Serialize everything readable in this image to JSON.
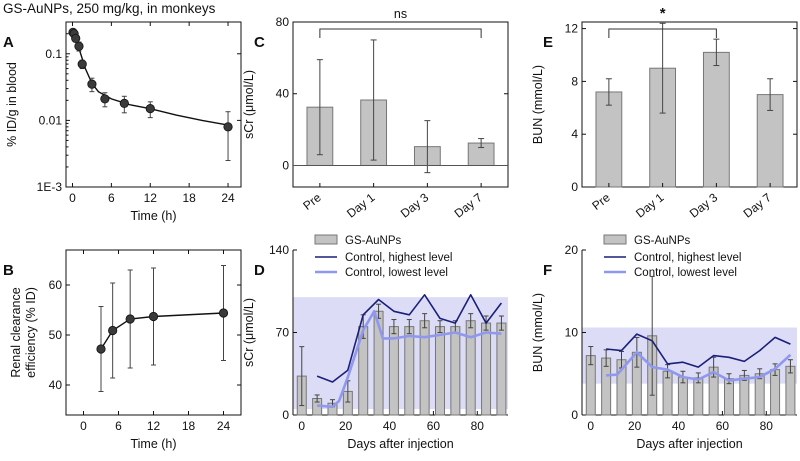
{
  "figure_title": "GS-AuNPs, 250 mg/kg, in monkeys",
  "colors": {
    "bar_fill": "#c3c3c3",
    "bar_stroke": "#777777",
    "control_high": "#1b1f7a",
    "control_low": "#8f98ee",
    "band": "#dcdcf6",
    "marker": "#3a3a3a"
  },
  "chart_data": [
    {
      "id": "A",
      "panel_label": "A",
      "type": "scatter",
      "xlabel": "Time (h)",
      "ylabel": "% ID/g in blood",
      "yscale": "log",
      "xlim": [
        -1,
        26
      ],
      "ylim": [
        0.001,
        0.3
      ],
      "xticks": [
        0,
        6,
        12,
        18,
        24
      ],
      "xtick_labels": [
        "0",
        "6",
        "12",
        "18",
        "24"
      ],
      "yticks": [
        0.001,
        0.01,
        0.1
      ],
      "ytick_labels": [
        "1E-3",
        "0.01",
        "0.1"
      ],
      "points": [
        {
          "x": 0.08,
          "y": 0.21,
          "err": 0.02
        },
        {
          "x": 0.25,
          "y": 0.2,
          "err": 0.02
        },
        {
          "x": 0.5,
          "y": 0.17,
          "err": 0.02
        },
        {
          "x": 1,
          "y": 0.13,
          "err": 0.02
        },
        {
          "x": 1.5,
          "y": 0.07,
          "err": 0.01
        },
        {
          "x": 3,
          "y": 0.035,
          "err": 0.008
        },
        {
          "x": 5,
          "y": 0.021,
          "err": 0.005
        },
        {
          "x": 8,
          "y": 0.018,
          "err": 0.005
        },
        {
          "x": 12,
          "y": 0.015,
          "err": 0.004
        },
        {
          "x": 24,
          "y": 0.008,
          "err": 0.0055
        }
      ],
      "fit": [
        [
          0.08,
          0.22
        ],
        [
          0.5,
          0.17
        ],
        [
          1,
          0.12
        ],
        [
          2,
          0.06
        ],
        [
          3,
          0.036
        ],
        [
          4,
          0.027
        ],
        [
          6,
          0.021
        ],
        [
          9,
          0.017
        ],
        [
          12,
          0.015
        ],
        [
          16,
          0.012
        ],
        [
          20,
          0.01
        ],
        [
          24,
          0.0085
        ]
      ]
    },
    {
      "id": "B",
      "panel_label": "B",
      "type": "line",
      "xlabel": "Time (h)",
      "ylabel_lines": [
        "Renal clearance",
        "efficiency (% ID)"
      ],
      "xlim": [
        -3,
        27
      ],
      "ylim": [
        34,
        67
      ],
      "xticks": [
        0,
        6,
        12,
        18,
        24
      ],
      "xtick_labels": [
        "0",
        "6",
        "12",
        "18",
        "24"
      ],
      "yticks": [
        40,
        50,
        60
      ],
      "ytick_labels": [
        "40",
        "50",
        "60"
      ],
      "points": [
        {
          "x": 3,
          "y": 47.2,
          "err": 8.5
        },
        {
          "x": 5,
          "y": 50.9,
          "err": 9.5
        },
        {
          "x": 8,
          "y": 53.2,
          "err": 9.8
        },
        {
          "x": 12,
          "y": 53.7,
          "err": 9.7
        },
        {
          "x": 24,
          "y": 54.4,
          "err": 9.5
        }
      ]
    },
    {
      "id": "C",
      "panel_label": "C",
      "type": "bar",
      "ylabel": "sCr (μmol/L)",
      "ylim": [
        -12,
        80
      ],
      "yticks": [
        0,
        40,
        80
      ],
      "ytick_labels": [
        "0",
        "40",
        "80"
      ],
      "categories": [
        "Pre",
        "Day 1",
        "Day 3",
        "Day 7"
      ],
      "values": [
        32.5,
        36.5,
        10.5,
        12.5
      ],
      "errors": [
        26.5,
        33.5,
        14.5,
        2.5
      ],
      "annotation": "ns",
      "annotation_span": [
        0,
        3
      ]
    },
    {
      "id": "E",
      "panel_label": "E",
      "type": "bar",
      "ylabel": "BUN (mmol/L)",
      "ylim": [
        0,
        12.5
      ],
      "yticks": [
        0,
        4,
        8,
        12
      ],
      "ytick_labels": [
        "0",
        "4",
        "8",
        "12"
      ],
      "categories": [
        "Pre",
        "Day 1",
        "Day 3",
        "Day 7"
      ],
      "values": [
        7.2,
        9.0,
        10.2,
        7.0
      ],
      "errors": [
        1.0,
        3.4,
        1.0,
        1.2
      ],
      "annotation": "*",
      "annotation_span": [
        0,
        2
      ]
    },
    {
      "id": "D",
      "panel_label": "D",
      "type": "bar",
      "xlabel": "Days after injection",
      "ylabel": "sCr (μmol/L)",
      "xlim": [
        -4,
        94
      ],
      "ylim": [
        0,
        140
      ],
      "xticks": [
        0,
        20,
        40,
        60,
        80
      ],
      "xtick_labels": [
        "0",
        "20",
        "40",
        "60",
        "80"
      ],
      "yticks": [
        0,
        70,
        140
      ],
      "ytick_labels": [
        "0",
        "70",
        "140"
      ],
      "band": [
        5,
        100
      ],
      "legend": [
        "GS-AuNPs",
        "Control, highest level",
        "Control, lowest level"
      ],
      "series": [
        {
          "name": "GS-AuNPs",
          "x": [
            0,
            7,
            14,
            21,
            28,
            35,
            42,
            49,
            56,
            63,
            70,
            77,
            84,
            91
          ],
          "values": [
            33,
            14,
            10,
            20,
            75,
            88,
            75,
            75,
            80,
            75,
            75,
            80,
            78,
            78
          ],
          "errors": [
            25,
            3,
            3,
            9,
            10,
            6,
            6,
            6,
            6,
            5,
            5,
            6,
            6,
            6
          ]
        },
        {
          "name": "Control, highest level",
          "x": [
            7,
            14,
            21,
            28,
            35,
            42,
            49,
            56,
            63,
            70,
            77,
            84,
            91
          ],
          "values": [
            33,
            28,
            38,
            85,
            98,
            88,
            85,
            102,
            82,
            78,
            102,
            78,
            95
          ]
        },
        {
          "name": "Control, lowest level",
          "x": [
            7,
            14,
            17,
            21,
            28,
            33,
            37,
            42,
            49,
            56,
            63,
            70,
            77,
            84,
            91
          ],
          "values": [
            8,
            7,
            12,
            32,
            72,
            88,
            65,
            65,
            67,
            66,
            68,
            70,
            66,
            70,
            69
          ]
        }
      ]
    },
    {
      "id": "F",
      "panel_label": "F",
      "type": "bar",
      "xlabel": "Days after injection",
      "ylabel": "BUN (mmol/L)",
      "xlim": [
        -4,
        94
      ],
      "ylim": [
        0,
        20
      ],
      "xticks": [
        0,
        20,
        40,
        60,
        80
      ],
      "xtick_labels": [
        "0",
        "20",
        "40",
        "60",
        "80"
      ],
      "yticks": [
        0,
        10,
        20
      ],
      "ytick_labels": [
        "0",
        "10",
        "20"
      ],
      "band": [
        3.8,
        10.6
      ],
      "legend": [
        "GS-AuNPs",
        "Control, highest level",
        "Control, lowest level"
      ],
      "series": [
        {
          "name": "GS-AuNPs",
          "x": [
            0,
            7,
            14,
            21,
            28,
            35,
            42,
            49,
            56,
            63,
            70,
            77,
            84,
            91
          ],
          "values": [
            7.2,
            6.9,
            6.7,
            7.6,
            9.6,
            5.3,
            4.6,
            4.5,
            5.8,
            4.4,
            4.8,
            5.0,
            5.5,
            5.9
          ],
          "errors": [
            1.1,
            1.0,
            1.0,
            1.8,
            7.2,
            0.8,
            0.7,
            0.6,
            1.2,
            0.6,
            0.6,
            0.6,
            0.7,
            0.8
          ]
        },
        {
          "name": "Control, highest level",
          "x": [
            7,
            14,
            21,
            28,
            35,
            42,
            49,
            56,
            63,
            70,
            77,
            84,
            91
          ],
          "values": [
            8.0,
            7.8,
            9.8,
            9.0,
            6.2,
            6.4,
            5.8,
            7.2,
            7.0,
            6.5,
            7.8,
            9.4,
            8.6
          ]
        },
        {
          "name": "Control, lowest level",
          "x": [
            7,
            12,
            14,
            21,
            28,
            35,
            42,
            49,
            56,
            63,
            70,
            77,
            84,
            91
          ],
          "values": [
            4.8,
            4.9,
            5.5,
            7.6,
            5.8,
            5.5,
            4.6,
            4.3,
            5.2,
            4.2,
            4.4,
            4.6,
            5.6,
            7.3
          ]
        }
      ]
    }
  ]
}
